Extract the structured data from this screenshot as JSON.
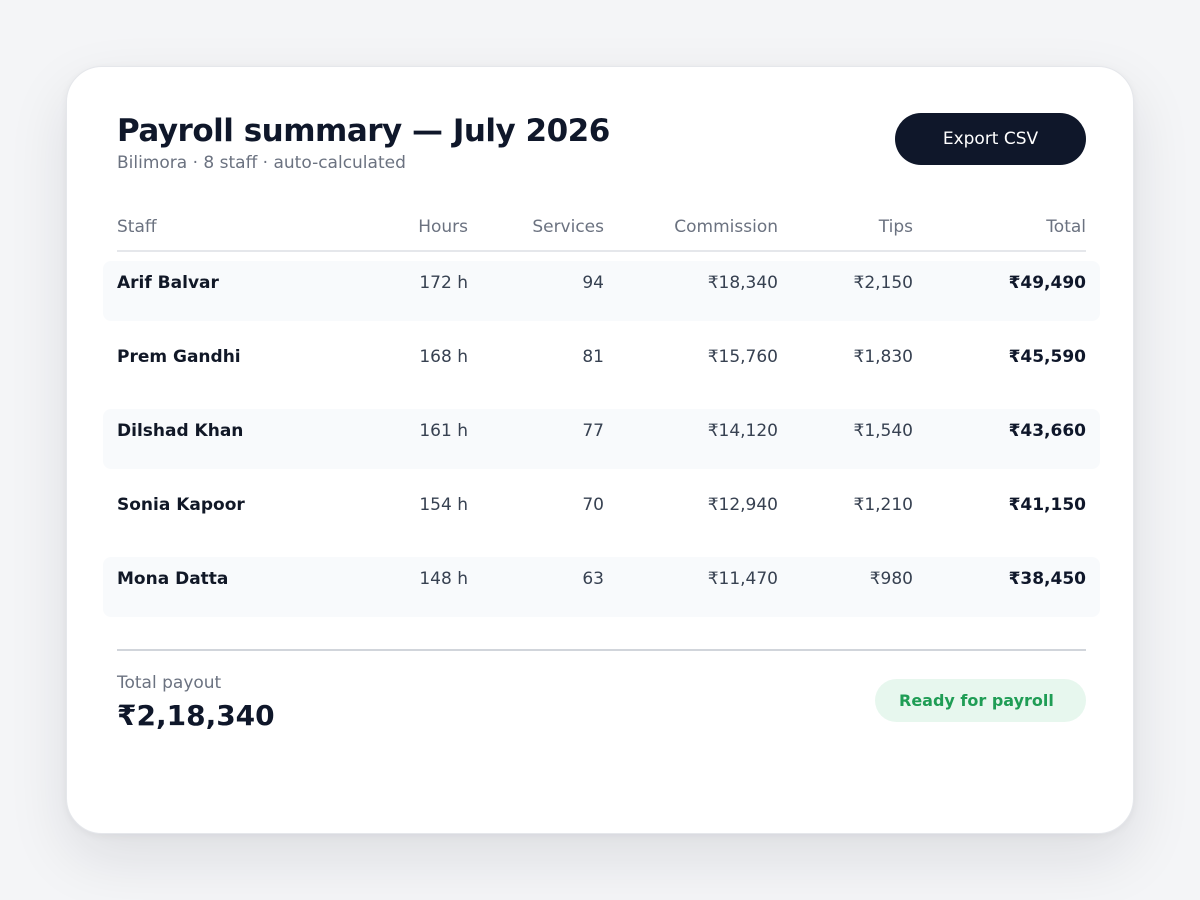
{
  "header": {
    "title": "Payroll summary — July 2026",
    "subtitle": "Bilimora · 8 staff · auto-calculated",
    "export_label": "Export CSV"
  },
  "table": {
    "columns": [
      "Staff",
      "Hours",
      "Services",
      "Commission",
      "Tips",
      "Total"
    ],
    "rows": [
      {
        "staff": "Arif Balvar",
        "hours": "172 h",
        "services": "94",
        "commission": "₹18,340",
        "tips": "₹2,150",
        "total": "₹49,490"
      },
      {
        "staff": "Prem Gandhi",
        "hours": "168 h",
        "services": "81",
        "commission": "₹15,760",
        "tips": "₹1,830",
        "total": "₹45,590"
      },
      {
        "staff": "Dilshad Khan",
        "hours": "161 h",
        "services": "77",
        "commission": "₹14,120",
        "tips": "₹1,540",
        "total": "₹43,660"
      },
      {
        "staff": "Sonia Kapoor",
        "hours": "154 h",
        "services": "70",
        "commission": "₹12,940",
        "tips": "₹1,210",
        "total": "₹41,150"
      },
      {
        "staff": "Mona Datta",
        "hours": "148 h",
        "services": "63",
        "commission": "₹11,470",
        "tips": "₹980",
        "total": "₹38,450"
      }
    ]
  },
  "footer": {
    "total_label": "Total payout",
    "total_value": "₹2,18,340",
    "status": "Ready for payroll"
  },
  "colors": {
    "primary_button": "#0f172a",
    "status_bg": "#e7f7ee",
    "status_text": "#1f9d55",
    "row_shade": "#f8fafc"
  }
}
